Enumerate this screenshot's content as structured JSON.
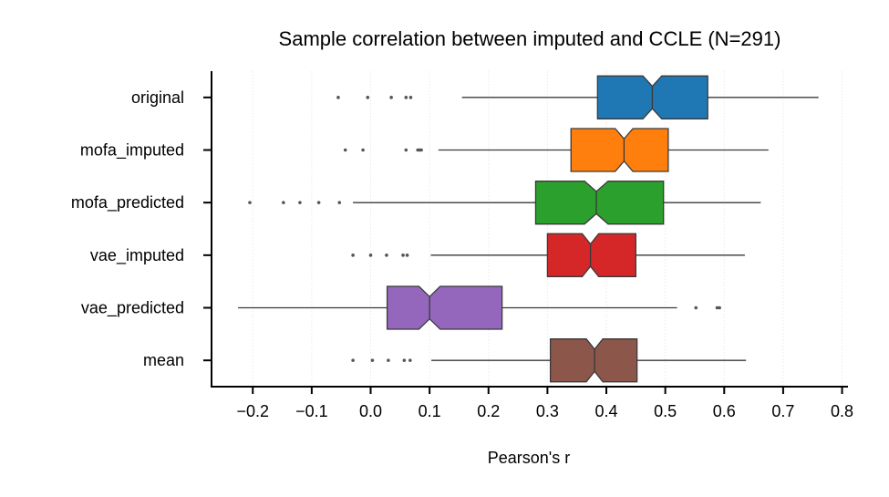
{
  "chart_data": {
    "type": "boxplot",
    "orientation": "horizontal",
    "notched": true,
    "title": "Sample correlation between imputed and CCLE (N=291)",
    "xlabel": "Pearson's r",
    "ylabel": "",
    "xlim": [
      -0.27,
      0.81
    ],
    "xticks": [
      -0.2,
      -0.1,
      0.0,
      0.1,
      0.2,
      0.3,
      0.4,
      0.5,
      0.6,
      0.7,
      0.8
    ],
    "xtick_labels": [
      "−0.2",
      "−0.1",
      "0.0",
      "0.1",
      "0.2",
      "0.3",
      "0.4",
      "0.5",
      "0.6",
      "0.7",
      "0.8"
    ],
    "grid": "vertical",
    "categories": [
      "original",
      "mofa_imputed",
      "mofa_predicted",
      "vae_imputed",
      "vae_predicted",
      "mean"
    ],
    "series": [
      {
        "name": "original",
        "color": "#1f77b4",
        "whisker_low": 0.155,
        "q1": 0.385,
        "median": 0.478,
        "q3": 0.572,
        "whisker_high": 0.76,
        "notch_low": 0.462,
        "notch_high": 0.494,
        "outliers": [
          -0.055,
          -0.005,
          0.035,
          0.06,
          0.068
        ]
      },
      {
        "name": "mofa_imputed",
        "color": "#ff7f0e",
        "whisker_low": 0.115,
        "q1": 0.34,
        "median": 0.43,
        "q3": 0.505,
        "whisker_high": 0.675,
        "notch_low": 0.415,
        "notch_high": 0.445,
        "outliers": [
          -0.043,
          -0.013,
          0.06,
          0.08,
          0.083,
          0.086
        ]
      },
      {
        "name": "mofa_predicted",
        "color": "#2ca02c",
        "whisker_low": -0.03,
        "q1": 0.28,
        "median": 0.383,
        "q3": 0.497,
        "whisker_high": 0.662,
        "notch_low": 0.363,
        "notch_high": 0.403,
        "outliers": [
          -0.205,
          -0.148,
          -0.12,
          -0.088,
          -0.053
        ]
      },
      {
        "name": "vae_imputed",
        "color": "#d62728",
        "whisker_low": 0.102,
        "q1": 0.3,
        "median": 0.373,
        "q3": 0.45,
        "whisker_high": 0.635,
        "notch_low": 0.359,
        "notch_high": 0.387,
        "outliers": [
          -0.03,
          0.0,
          0.027,
          0.055,
          0.062
        ]
      },
      {
        "name": "vae_predicted",
        "color": "#9467bd",
        "whisker_low": -0.225,
        "q1": 0.028,
        "median": 0.1,
        "q3": 0.223,
        "whisker_high": 0.52,
        "notch_low": 0.082,
        "notch_high": 0.118,
        "outliers": [
          0.552,
          0.588,
          0.592
        ]
      },
      {
        "name": "mean",
        "color": "#8c564b",
        "whisker_low": 0.103,
        "q1": 0.305,
        "median": 0.38,
        "q3": 0.452,
        "whisker_high": 0.637,
        "notch_low": 0.366,
        "notch_high": 0.394,
        "outliers": [
          -0.03,
          0.003,
          0.03,
          0.057,
          0.067
        ]
      }
    ]
  }
}
